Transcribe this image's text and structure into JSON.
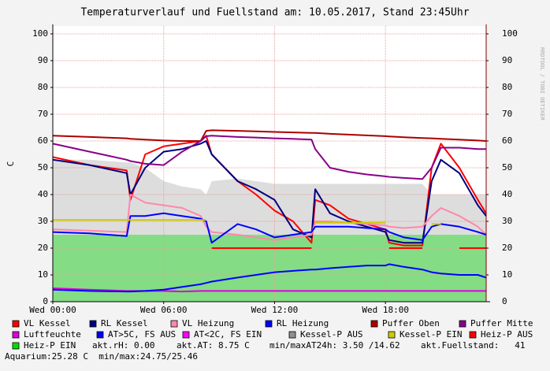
{
  "chart_data": {
    "type": "line",
    "title": "Temperaturverlauf und Fuellstand am: 10.05.2017, Stand 23:45Uhr",
    "y_label": "C",
    "watermark": "RRDTOOL / TOBI OETIKER",
    "x": [
      0,
      2,
      4,
      4.2,
      5,
      6,
      7,
      8,
      8.3,
      8.6,
      10,
      11,
      12,
      13,
      14,
      14.2,
      15,
      16,
      17,
      18,
      18.2,
      19,
      20,
      20.5,
      21,
      22,
      23,
      23.45
    ],
    "xlim": [
      0,
      23.45
    ],
    "xticks": [
      {
        "value": 0,
        "label": "Wed 00:00"
      },
      {
        "value": 6,
        "label": "Wed 06:00"
      },
      {
        "value": 12,
        "label": "Wed 12:00"
      },
      {
        "value": 18,
        "label": "Wed 18:00"
      }
    ],
    "ylim": [
      0,
      100
    ],
    "yticks": [
      0,
      10,
      20,
      30,
      40,
      50,
      60,
      70,
      80,
      90,
      100
    ],
    "y2lim": [
      0,
      100
    ],
    "y2ticks": [
      0,
      10,
      20,
      30,
      40,
      50,
      60,
      70,
      80,
      90,
      100
    ],
    "grid": true,
    "series": [
      {
        "name": "VL Kessel",
        "color": "#ff0000",
        "kind": "line",
        "values": [
          54,
          51,
          49,
          38,
          55,
          58,
          59,
          60,
          62,
          55,
          45,
          40,
          34,
          30,
          22,
          38,
          36,
          31,
          29,
          27,
          22,
          21,
          21,
          50,
          59,
          50,
          38,
          33
        ]
      },
      {
        "name": "RL Kessel",
        "color": "#000080",
        "kind": "line",
        "values": [
          53,
          51,
          48,
          40,
          50,
          56,
          57,
          59,
          60,
          55,
          45,
          42,
          38,
          27,
          24,
          42,
          33,
          30,
          28,
          26,
          23,
          22,
          22,
          45,
          53,
          48,
          36,
          32
        ]
      },
      {
        "name": "VL Heizung",
        "color": "#ff88aa",
        "kind": "line",
        "values": [
          27,
          26.5,
          26,
          40,
          37,
          36,
          35,
          32,
          28,
          26,
          25,
          24,
          23,
          24,
          25,
          30,
          30,
          29.5,
          29,
          28.5,
          28,
          27.5,
          28,
          32,
          35,
          32,
          28,
          25
        ]
      },
      {
        "name": "RL Heizung",
        "color": "#0000ff",
        "kind": "line",
        "values": [
          26,
          25.5,
          24.5,
          32,
          32,
          33,
          32,
          31,
          30,
          22,
          29,
          27,
          24,
          25,
          26,
          28,
          28,
          28,
          27.5,
          27,
          26,
          24,
          23,
          28,
          29,
          28,
          26,
          25
        ]
      },
      {
        "name": "Puffer Oben",
        "color": "#aa0000",
        "kind": "line",
        "values": [
          62,
          61.5,
          61,
          60.8,
          60.5,
          60.2,
          60,
          60,
          63.8,
          64,
          63.8,
          63.6,
          63.4,
          63.2,
          63,
          63,
          62.7,
          62.4,
          62.1,
          61.8,
          61.7,
          61.4,
          61.1,
          61,
          60.8,
          60.5,
          60.2,
          60
        ]
      },
      {
        "name": "Puffer Mitte",
        "color": "#880088",
        "kind": "line",
        "values": [
          59,
          56,
          53,
          52.5,
          51.5,
          51,
          56,
          60,
          61.8,
          62,
          61.5,
          61.3,
          61,
          60.8,
          60.5,
          57,
          50,
          48.5,
          47.5,
          46.8,
          46.6,
          46.2,
          45.8,
          50,
          57.5,
          57.5,
          57,
          57
        ]
      },
      {
        "name": "Luftfeuchte",
        "color": "#dd00dd",
        "kind": "line",
        "values": [
          5,
          4.5,
          4,
          4,
          4,
          4,
          3.8,
          4,
          4,
          4,
          4,
          4,
          4,
          4,
          4,
          4,
          4,
          4,
          4,
          4,
          4,
          4,
          4,
          4,
          4,
          4,
          4,
          4
        ]
      },
      {
        "name": "AT>5C, FS AUS",
        "color": "#0000ff",
        "kind": "line",
        "values": [
          4.5,
          4,
          3.8,
          3.8,
          4,
          4.5,
          5.5,
          6.5,
          7,
          7.5,
          9,
          10,
          11,
          11.5,
          12,
          12,
          12.5,
          13,
          13.5,
          13.5,
          14,
          13,
          12,
          11,
          10.5,
          10,
          10,
          9
        ]
      },
      {
        "name": "AT<2C, FS EIN",
        "color": "#ff00ff",
        "kind": "line",
        "values": [
          null,
          null,
          null,
          null,
          null,
          null,
          null,
          null,
          null,
          null,
          null,
          null,
          null,
          null,
          null,
          null,
          null,
          null,
          null,
          null,
          null,
          null,
          null,
          null,
          null,
          null,
          null,
          null
        ]
      },
      {
        "name": "Kessel-P AUS",
        "color": "#909090",
        "kind": "area",
        "values": [
          53,
          53,
          52,
          52,
          50,
          45,
          43,
          42,
          40,
          45,
          46,
          45,
          44,
          44,
          44,
          44,
          44,
          44,
          44,
          44,
          44,
          44,
          44,
          40,
          40,
          40,
          40,
          40
        ]
      },
      {
        "name": "Kessel-P EIN",
        "color": "#cccc00",
        "kind": "line",
        "values": [
          30.5,
          30.5,
          30.5,
          30.5,
          30.5,
          30.5,
          30.5,
          30.5,
          30.5,
          null,
          null,
          null,
          null,
          null,
          null,
          29.5,
          29.5,
          29.5,
          29.5,
          29.5,
          null,
          null,
          null,
          29,
          29,
          null,
          null,
          null
        ]
      },
      {
        "name": "Heiz-P AUS",
        "color": "#ff0000",
        "kind": "line",
        "values": [
          null,
          null,
          null,
          null,
          null,
          null,
          null,
          null,
          null,
          20,
          20,
          20,
          20,
          20,
          20,
          null,
          null,
          null,
          null,
          null,
          20,
          20,
          20,
          null,
          null,
          20,
          20,
          20
        ]
      },
      {
        "name": "Heiz-P EIN",
        "color": "#00dd00",
        "kind": "area",
        "values": [
          25,
          25,
          25,
          25,
          25,
          25,
          25,
          25,
          25,
          25,
          25,
          25,
          25,
          25,
          25,
          25,
          25,
          25,
          25,
          25,
          25,
          25,
          25,
          25,
          25,
          25,
          25,
          25
        ]
      }
    ],
    "notes": [
      "akt.rH: 0.00",
      "akt.AT: 8.75 C",
      "min/maxAT24h: 3.50 /14.62",
      "akt.Fuellstand:   41",
      "Aquarium:25.28 C  min/max:24.75/25.46"
    ]
  }
}
